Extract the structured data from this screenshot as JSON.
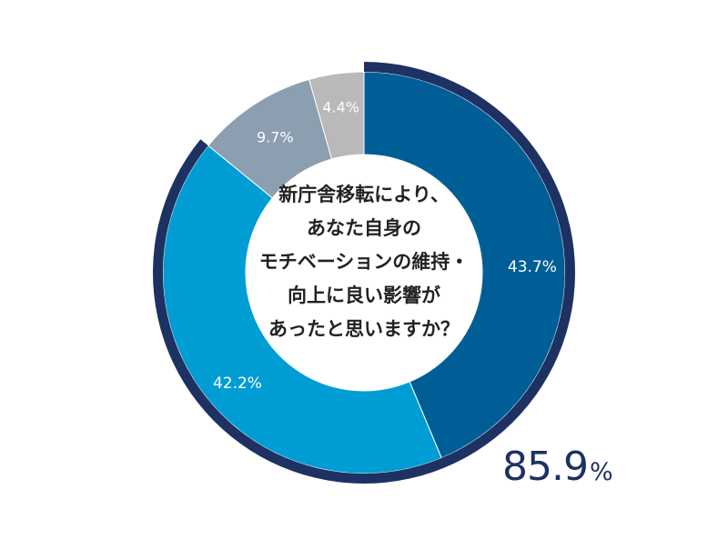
{
  "chart_data": {
    "type": "pie",
    "variant": "donut",
    "slices": [
      {
        "label": "43.7%",
        "value": 43.7,
        "color": "#005e97"
      },
      {
        "label": "42.2%",
        "value": 42.2,
        "color": "#009dd4"
      },
      {
        "label": "9.7%",
        "value": 9.7,
        "color": "#8c9fb1"
      },
      {
        "label": "4.4%",
        "value": 4.4,
        "color": "#b9b9b9"
      }
    ],
    "highlight": {
      "label": "85.9",
      "unit": "%",
      "value": 85.9,
      "covers_slices": [
        0,
        1
      ],
      "ring_color": "#1e3163"
    },
    "label_colors": {
      "light": "#ffffff"
    }
  },
  "center_text": {
    "lines": [
      "新庁舎移転により、",
      "あなた自身の",
      "モチベーションの維持・",
      "向上に良い影響が",
      "あったと思いますか？"
    ]
  }
}
